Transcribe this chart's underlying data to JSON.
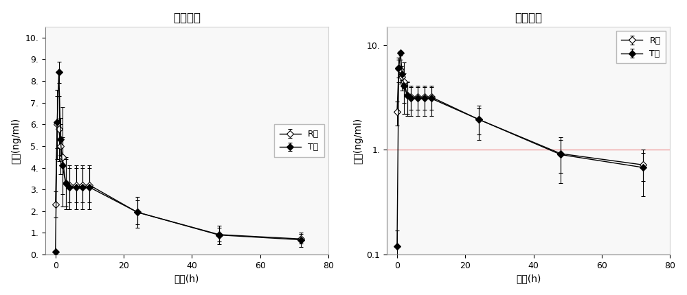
{
  "title": "均数对比",
  "xlabel": "时间(h)",
  "ylabel": "浓度(ng/ml)",
  "legend_R": "R药",
  "legend_T": "T药",
  "R_x": [
    0,
    0.5,
    1.0,
    1.5,
    2.0,
    3.0,
    4.0,
    6.0,
    8.0,
    10.0,
    24,
    48,
    72
  ],
  "R_y": [
    2.3,
    6.0,
    5.8,
    5.0,
    4.5,
    3.3,
    3.2,
    3.2,
    3.2,
    3.2,
    1.95,
    0.92,
    0.72
  ],
  "R_yerr": [
    0.6,
    1.6,
    1.5,
    1.3,
    2.3,
    1.1,
    0.8,
    0.8,
    0.8,
    0.8,
    0.55,
    0.32,
    0.22
  ],
  "T_x": [
    0,
    0.5,
    1.0,
    1.5,
    2.0,
    3.0,
    4.0,
    6.0,
    8.0,
    10.0,
    24,
    48,
    72
  ],
  "T_y": [
    0.12,
    6.1,
    8.4,
    5.3,
    4.1,
    3.3,
    3.1,
    3.1,
    3.1,
    3.1,
    1.95,
    0.9,
    0.68
  ],
  "T_yerr": [
    0.05,
    1.2,
    0.5,
    0.7,
    1.3,
    1.2,
    1.0,
    1.0,
    1.0,
    1.0,
    0.7,
    0.42,
    0.32
  ],
  "xlim_left": -3,
  "xlim_right": 78,
  "ylim_linear": [
    0,
    10.5
  ],
  "ylim_log": [
    0.1,
    15
  ],
  "yticks_linear": [
    0,
    1,
    2,
    3,
    4,
    5,
    6,
    7,
    8,
    9,
    10
  ],
  "ytick_labels_linear": [
    "0.",
    "1.",
    "2.",
    "3.",
    "4.",
    "5.",
    "6.",
    "7.",
    "8.",
    "9.",
    "10."
  ],
  "xticks": [
    0,
    20,
    40,
    60,
    80
  ],
  "hline_log_y": 1.0,
  "hline_color": "#f0a0a0",
  "bg_color": "#ffffff",
  "plot_bg_color": "#f8f8f8",
  "R_color": "black",
  "T_color": "black",
  "title_fontsize": 12,
  "label_fontsize": 10,
  "tick_fontsize": 9,
  "legend_fontsize": 9
}
